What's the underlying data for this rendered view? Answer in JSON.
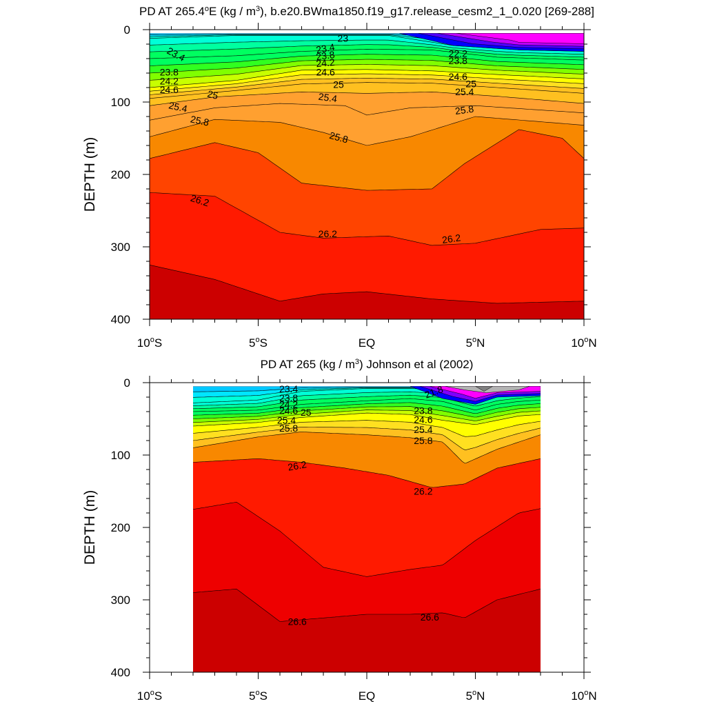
{
  "chart_data": [
    {
      "type": "contour",
      "title_main": "PD AT 265.4",
      "title_deg": "o",
      "title_mid": "E (kg / m",
      "title_sup": "3",
      "title_tail": "), b.e20.BWma1850.f19_g17.release_cesm2_1_0.020 [269-288]",
      "ylabel": "DEPTH (m)",
      "xlim": [
        -10,
        10
      ],
      "ylim": [
        0,
        400
      ],
      "data_xrange": [
        -10,
        10
      ],
      "data_yrange": [
        5,
        400
      ],
      "x_ticks": [
        {
          "value": -10,
          "num": "10",
          "deg": "o",
          "suf": "S"
        },
        {
          "value": -5,
          "num": "5",
          "deg": "o",
          "suf": "S"
        },
        {
          "value": 0,
          "num": "EQ",
          "deg": "",
          "suf": ""
        },
        {
          "value": 5,
          "num": "5",
          "deg": "o",
          "suf": "N"
        },
        {
          "value": 10,
          "num": "10",
          "deg": "o",
          "suf": "N"
        }
      ],
      "y_ticks": [
        0,
        100,
        200,
        300,
        400
      ],
      "contour_labels": [
        {
          "text": "23",
          "x": -1.1,
          "y": 13,
          "rot": 0
        },
        {
          "text": "23.4",
          "x": -8.8,
          "y": 35,
          "rot": 28
        },
        {
          "text": "23.4",
          "x": -1.9,
          "y": 27,
          "rot": -10
        },
        {
          "text": "23.8",
          "x": -1.9,
          "y": 37,
          "rot": -8
        },
        {
          "text": "24.2",
          "x": -1.9,
          "y": 47,
          "rot": -5
        },
        {
          "text": "24.6",
          "x": -1.9,
          "y": 60,
          "rot": 0
        },
        {
          "text": "25",
          "x": -1.3,
          "y": 77,
          "rot": 0
        },
        {
          "text": "25.4",
          "x": -1.8,
          "y": 95,
          "rot": 8
        },
        {
          "text": "25.8",
          "x": -1.3,
          "y": 150,
          "rot": 15
        },
        {
          "text": "22.2",
          "x": 4.2,
          "y": 34,
          "rot": 0
        },
        {
          "text": "23.8",
          "x": 4.2,
          "y": 44,
          "rot": 0
        },
        {
          "text": "24.6",
          "x": 4.2,
          "y": 66,
          "rot": 0
        },
        {
          "text": "25",
          "x": 4.8,
          "y": 76,
          "rot": 0
        },
        {
          "text": "25.4",
          "x": 4.5,
          "y": 87,
          "rot": 0
        },
        {
          "text": "25.8",
          "x": 4.5,
          "y": 112,
          "rot": -8
        },
        {
          "text": "23.8",
          "x": -9.1,
          "y": 60,
          "rot": 0
        },
        {
          "text": "24.2",
          "x": -9.1,
          "y": 72,
          "rot": 0
        },
        {
          "text": "24.6",
          "x": -9.1,
          "y": 84,
          "rot": 0
        },
        {
          "text": "25",
          "x": -7.1,
          "y": 91,
          "rot": 15
        },
        {
          "text": "25.4",
          "x": -8.7,
          "y": 108,
          "rot": 12
        },
        {
          "text": "25.8",
          "x": -7.7,
          "y": 127,
          "rot": 12
        },
        {
          "text": "26.2",
          "x": -7.7,
          "y": 237,
          "rot": 18
        },
        {
          "text": "26.2",
          "x": -1.8,
          "y": 283,
          "rot": 0
        },
        {
          "text": "26.2",
          "x": 3.9,
          "y": 290,
          "rot": -8
        }
      ]
    },
    {
      "type": "contour",
      "title_main": "PD AT 265 (kg / m",
      "title_deg": "",
      "title_mid": "",
      "title_sup": "3",
      "title_tail": ") Johnson et al (2002)",
      "ylabel": "DEPTH (m)",
      "xlim": [
        -10,
        10
      ],
      "ylim": [
        0,
        400
      ],
      "data_xrange": [
        -8,
        8
      ],
      "data_yrange": [
        5,
        400
      ],
      "x_ticks": [
        {
          "value": -10,
          "num": "10",
          "deg": "o",
          "suf": "S"
        },
        {
          "value": -5,
          "num": "5",
          "deg": "o",
          "suf": "S"
        },
        {
          "value": 0,
          "num": "EQ",
          "deg": "",
          "suf": ""
        },
        {
          "value": 5,
          "num": "5",
          "deg": "o",
          "suf": "N"
        },
        {
          "value": 10,
          "num": "10",
          "deg": "o",
          "suf": "N"
        }
      ],
      "y_ticks": [
        0,
        100,
        200,
        300,
        400
      ],
      "contour_labels": [
        {
          "text": "23.4",
          "x": -3.6,
          "y": 10,
          "rot": 0
        },
        {
          "text": "23.8",
          "x": -3.6,
          "y": 22,
          "rot": 0
        },
        {
          "text": "24.2",
          "x": -3.6,
          "y": 31,
          "rot": 0
        },
        {
          "text": "24.6",
          "x": -3.6,
          "y": 40,
          "rot": 0
        },
        {
          "text": "25",
          "x": -2.8,
          "y": 42,
          "rot": 0
        },
        {
          "text": "25.4",
          "x": -3.7,
          "y": 53,
          "rot": 0
        },
        {
          "text": "25.8",
          "x": -3.6,
          "y": 64,
          "rot": 0
        },
        {
          "text": "26.2",
          "x": -3.2,
          "y": 116,
          "rot": -10
        },
        {
          "text": "26.2",
          "x": 2.6,
          "y": 151,
          "rot": 0
        },
        {
          "text": "21.8",
          "x": 3.1,
          "y": 14,
          "rot": -20
        },
        {
          "text": "23.8",
          "x": 2.6,
          "y": 40,
          "rot": 0
        },
        {
          "text": "24.6",
          "x": 2.6,
          "y": 52,
          "rot": 0
        },
        {
          "text": "25.4",
          "x": 2.6,
          "y": 66,
          "rot": 0
        },
        {
          "text": "25.8",
          "x": 2.6,
          "y": 81,
          "rot": 0
        },
        {
          "text": "26.6",
          "x": -3.2,
          "y": 331,
          "rot": 0
        },
        {
          "text": "26.6",
          "x": 2.9,
          "y": 325,
          "rot": 0
        }
      ]
    }
  ]
}
